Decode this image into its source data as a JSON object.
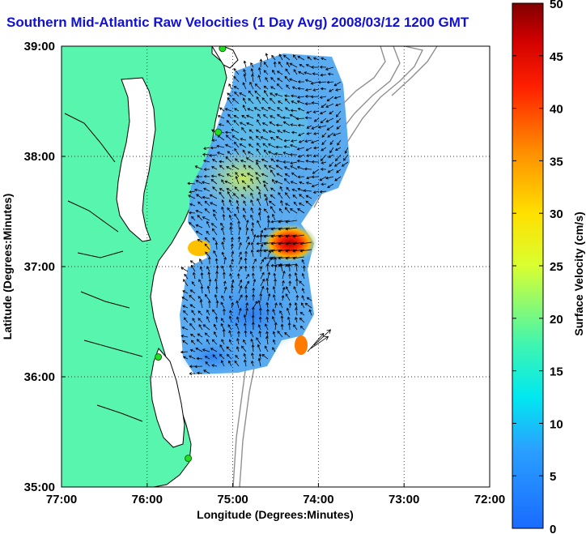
{
  "title": "Southern Mid-Atlantic Raw Velocities (1 Day Avg) 2008/03/12 1200 GMT",
  "x_axis": {
    "label": "Longitude (Degrees:Minutes)",
    "ticks": [
      "77:00",
      "76:00",
      "75:00",
      "74:00",
      "73:00",
      "72:00"
    ]
  },
  "y_axis": {
    "label": "Latitude (Degrees:Minutes)",
    "ticks": [
      "39:00",
      "38:00",
      "37:00",
      "36:00",
      "35:00"
    ]
  },
  "colorbar": {
    "label": "Surface Velocity (cm/s)",
    "ticks": [
      "50",
      "45",
      "40",
      "35",
      "30",
      "25",
      "20",
      "15",
      "10",
      "5",
      "0"
    ],
    "min": 0,
    "max": 50
  },
  "map": {
    "lon_range": [
      -77,
      -72
    ],
    "lat_range": [
      35,
      39
    ],
    "grid": "dotted",
    "land_color": "#58f5ae",
    "bathymetry_color": "#909090",
    "station_color": "#22dd22",
    "stations": [
      {
        "lon": -75.12,
        "lat": 38.98
      },
      {
        "lon": -75.17,
        "lat": 38.22
      },
      {
        "lon": -75.87,
        "lat": 36.18
      },
      {
        "lon": -75.52,
        "lat": 35.26
      }
    ]
  }
}
